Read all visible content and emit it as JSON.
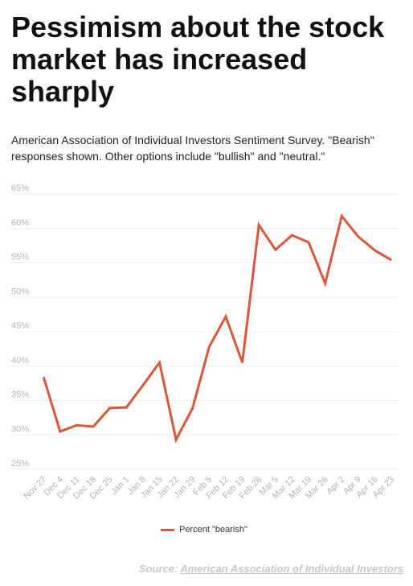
{
  "header": {
    "title": "Pessimism about the stock market has increased sharply",
    "subtitle": "American Association of Individual Investors Sentiment Survey. \"Bearish\" responses shown. Other options include \"bullish\" and \"neutral.\""
  },
  "chart_data": {
    "type": "line",
    "categories": [
      "Nov 27",
      "Dec 4",
      "Dec 11",
      "Dec 18",
      "Dec 25",
      "Jan 1",
      "Jan 8",
      "Jan 15",
      "Jan 22",
      "Jan 29",
      "Feb 5",
      "Feb 12",
      "Feb 19",
      "Feb 26",
      "Mar 5",
      "Mar 12",
      "Mar 19",
      "Mar 26",
      "Apr 2",
      "Apr 9",
      "Apr 16",
      "Apr 23"
    ],
    "series": [
      {
        "name": "Percent \"bearish\"",
        "values": [
          38.4,
          30.5,
          31.4,
          31.2,
          33.9,
          34.0,
          37.2,
          40.5,
          29.3,
          33.9,
          42.8,
          47.2,
          40.5,
          60.5,
          56.9,
          59.0,
          58.0,
          52.0,
          61.8,
          58.8,
          56.8,
          55.4
        ]
      }
    ],
    "y_ticks": [
      "65%",
      "60%",
      "55%",
      "50%",
      "45%",
      "40%",
      "35%",
      "30%",
      "25%"
    ],
    "ylim": [
      25,
      65
    ],
    "grid": true,
    "legend_position": "bottom-center",
    "line_color": "#d9573a"
  },
  "legend": {
    "label": "Percent \"bearish\""
  },
  "source": {
    "prefix": "Source: ",
    "link_text": "American Association of Individual Investors"
  }
}
